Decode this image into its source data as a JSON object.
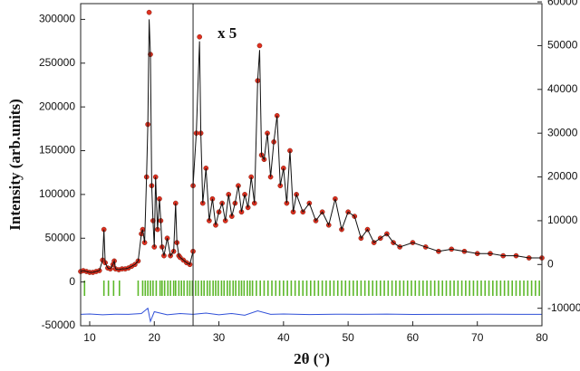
{
  "chart_data": {
    "type": "line",
    "y_label": "Intensity (arb.units)",
    "x_label": "2θ (°)",
    "annotation": "x 5",
    "xlim": [
      8.6,
      80
    ],
    "xticks": [
      10,
      20,
      30,
      40,
      50,
      60,
      70,
      80
    ],
    "ylim": [
      -50000,
      318000
    ],
    "yticks": [
      -50000,
      0,
      50000,
      100000,
      150000,
      200000,
      250000,
      300000
    ],
    "y2lim": [
      -14000,
      59600
    ],
    "y2ticks": [
      -10000,
      0,
      10000,
      20000,
      30000,
      40000,
      50000,
      60000
    ],
    "grid": false,
    "divider_x": 26,
    "series": [
      {
        "marker": "dot",
        "color": "#e03020",
        "axis": "y",
        "x": [
          8.6,
          9,
          9.5,
          10,
          10.5,
          11,
          11.5,
          12,
          12.2,
          12.4,
          12.8,
          13.2,
          13.6,
          13.8,
          14,
          14.5,
          15,
          15.5,
          16,
          16.5,
          17,
          17.5,
          18,
          18.2,
          18.5,
          18.8,
          19,
          19.2,
          19.4,
          19.6,
          19.8,
          20,
          20.2,
          20.5,
          20.8,
          21,
          21.2,
          21.5,
          22,
          22.5,
          23,
          23.3,
          23.5,
          23.8,
          24,
          24.5,
          25,
          25.5,
          26
        ],
        "values": [
          12000,
          13000,
          12000,
          11000,
          11000,
          12000,
          13000,
          25000,
          60000,
          22000,
          16000,
          15000,
          20000,
          24000,
          15000,
          14000,
          15000,
          15000,
          16000,
          18000,
          20000,
          24000,
          55000,
          60000,
          45000,
          120000,
          180000,
          308000,
          260000,
          110000,
          70000,
          40000,
          120000,
          60000,
          95000,
          70000,
          40000,
          30000,
          50000,
          30000,
          35000,
          90000,
          45000,
          30000,
          28000,
          25000,
          22000,
          20000,
          35000
        ]
      },
      {
        "marker": "line",
        "color": "#111111",
        "axis": "y",
        "x": [
          8.6,
          9,
          9.5,
          10,
          10.5,
          11,
          11.5,
          12,
          12.2,
          12.4,
          12.8,
          13.2,
          13.6,
          13.8,
          14,
          14.5,
          15,
          15.5,
          16,
          16.5,
          17,
          17.5,
          18,
          18.2,
          18.5,
          18.8,
          19,
          19.2,
          19.4,
          19.6,
          19.8,
          20,
          20.2,
          20.5,
          20.8,
          21,
          21.2,
          21.5,
          22,
          22.5,
          23,
          23.3,
          23.5,
          23.8,
          24,
          24.5,
          25,
          25.5,
          26
        ],
        "values": [
          12000,
          13000,
          12000,
          11000,
          11000,
          12000,
          13000,
          25000,
          60000,
          22000,
          16000,
          15000,
          20000,
          24000,
          15000,
          14000,
          15000,
          15000,
          16000,
          18000,
          20000,
          24000,
          55000,
          60000,
          45000,
          120000,
          180000,
          300000,
          260000,
          110000,
          70000,
          40000,
          120000,
          60000,
          95000,
          70000,
          40000,
          30000,
          50000,
          30000,
          35000,
          90000,
          45000,
          30000,
          28000,
          25000,
          22000,
          20000,
          35000
        ]
      },
      {
        "marker": "dot",
        "color": "#e03020",
        "axis": "y2",
        "x": [
          26,
          26.5,
          27,
          27.2,
          27.5,
          28,
          28.5,
          29,
          29.5,
          30,
          30.5,
          31,
          31.5,
          32,
          32.5,
          33,
          33.5,
          34,
          34.5,
          35,
          35.5,
          36,
          36.3,
          36.6,
          37,
          37.5,
          38,
          38.5,
          39,
          39.5,
          40,
          40.5,
          41,
          41.5,
          42,
          43,
          44,
          45,
          46,
          47,
          48,
          49,
          50,
          51,
          52,
          53,
          54,
          55,
          56,
          57,
          58,
          60,
          62,
          64,
          66,
          68,
          70,
          72,
          74,
          76,
          78,
          80
        ],
        "values": [
          18000,
          30000,
          52000,
          30000,
          14000,
          22000,
          10000,
          15000,
          9000,
          12000,
          14000,
          10000,
          16000,
          11000,
          14000,
          18000,
          12000,
          16000,
          13000,
          20000,
          14000,
          42000,
          50000,
          25000,
          24000,
          30000,
          20000,
          28000,
          34000,
          18000,
          22000,
          14000,
          26000,
          12000,
          16000,
          12000,
          14000,
          10000,
          12000,
          9000,
          15000,
          8000,
          12000,
          11000,
          6000,
          8000,
          5000,
          6000,
          7000,
          5000,
          4000,
          5000,
          4000,
          3000,
          3500,
          3000,
          2500,
          2500,
          2000,
          2000,
          1500,
          1500
        ]
      },
      {
        "marker": "line",
        "color": "#111111",
        "axis": "y2",
        "x": [
          26,
          26.5,
          27,
          27.2,
          27.5,
          28,
          28.5,
          29,
          29.5,
          30,
          30.5,
          31,
          31.5,
          32,
          32.5,
          33,
          33.5,
          34,
          34.5,
          35,
          35.5,
          36,
          36.3,
          36.6,
          37,
          37.5,
          38,
          38.5,
          39,
          39.5,
          40,
          40.5,
          41,
          41.5,
          42,
          43,
          44,
          45,
          46,
          47,
          48,
          49,
          50,
          51,
          52,
          53,
          54,
          55,
          56,
          57,
          58,
          60,
          62,
          64,
          66,
          68,
          70,
          72,
          74,
          76,
          78,
          80
        ],
        "values": [
          18000,
          30000,
          51000,
          30000,
          14000,
          22000,
          10000,
          15000,
          9000,
          12000,
          14000,
          10000,
          16000,
          11000,
          14000,
          18000,
          12000,
          16000,
          13000,
          20000,
          14000,
          42000,
          49000,
          25000,
          24000,
          30000,
          20000,
          28000,
          34000,
          18000,
          22000,
          14000,
          26000,
          12000,
          16000,
          12000,
          14000,
          10000,
          12000,
          9000,
          15000,
          8000,
          12000,
          11000,
          6000,
          8000,
          5000,
          6000,
          7000,
          5000,
          4000,
          5000,
          4000,
          3000,
          3500,
          3000,
          2500,
          2500,
          2000,
          2000,
          1500,
          1500
        ]
      },
      {
        "marker": "line",
        "color": "#3050d8",
        "axis": "y",
        "x": [
          8.6,
          10,
          12,
          14,
          16,
          18,
          19,
          19.4,
          20,
          22,
          24,
          26,
          28,
          30,
          32,
          34,
          36,
          38,
          40,
          44,
          48,
          52,
          56,
          60,
          64,
          68,
          72,
          76,
          80
        ],
        "values": [
          -37000,
          -36500,
          -37500,
          -36800,
          -37000,
          -36000,
          -30000,
          -45000,
          -34000,
          -37500,
          -36000,
          -37000,
          -35500,
          -37500,
          -36000,
          -38000,
          -33000,
          -37000,
          -36500,
          -37200,
          -36800,
          -37000,
          -36700,
          -37100,
          -36900,
          -37000,
          -36800,
          -37000,
          -36900
        ]
      },
      {
        "marker": "tick",
        "color": "#5cb82a",
        "x": [
          9.2,
          12.2,
          12.9,
          13.7,
          14.6,
          17.5,
          18.2,
          18.6,
          19,
          19.4,
          19.8,
          20.3,
          20.9,
          21.2,
          21.6,
          22.1,
          22.5,
          23,
          23.3,
          23.8,
          24.2,
          24.6,
          25.1,
          25.5,
          25.9,
          26.4,
          26.8,
          27.3,
          27.7,
          28.2,
          28.6,
          29.1,
          29.5,
          29.9,
          30.4,
          30.8,
          31.3,
          31.7,
          32.2,
          32.6,
          33.1,
          33.5,
          33.9,
          34.4,
          34.8,
          35.2,
          35.8,
          36.4,
          37,
          37.6,
          38.2,
          38.8,
          39.4,
          40,
          40.6,
          41.2,
          41.8,
          42.4,
          43,
          43.6,
          44.2,
          44.8,
          45.4,
          46,
          46.6,
          47.2,
          47.8,
          48.4,
          49,
          49.6,
          50.2,
          50.8,
          51.4,
          52,
          52.6,
          53.2,
          53.8,
          54.4,
          55,
          55.6,
          56.2,
          56.8,
          57.4,
          58,
          58.6,
          59.2,
          59.8,
          60.4,
          61,
          61.6,
          62.2,
          62.8,
          63.4,
          64,
          64.6,
          65.2,
          65.8,
          66.4,
          67,
          67.6,
          68.2,
          68.8,
          69.4,
          70,
          70.6,
          71.2,
          71.8,
          72.4,
          73,
          73.6,
          74.2,
          74.8,
          75.4,
          76,
          76.6,
          77.2,
          77.8,
          78.4,
          79,
          79.6
        ]
      }
    ]
  }
}
